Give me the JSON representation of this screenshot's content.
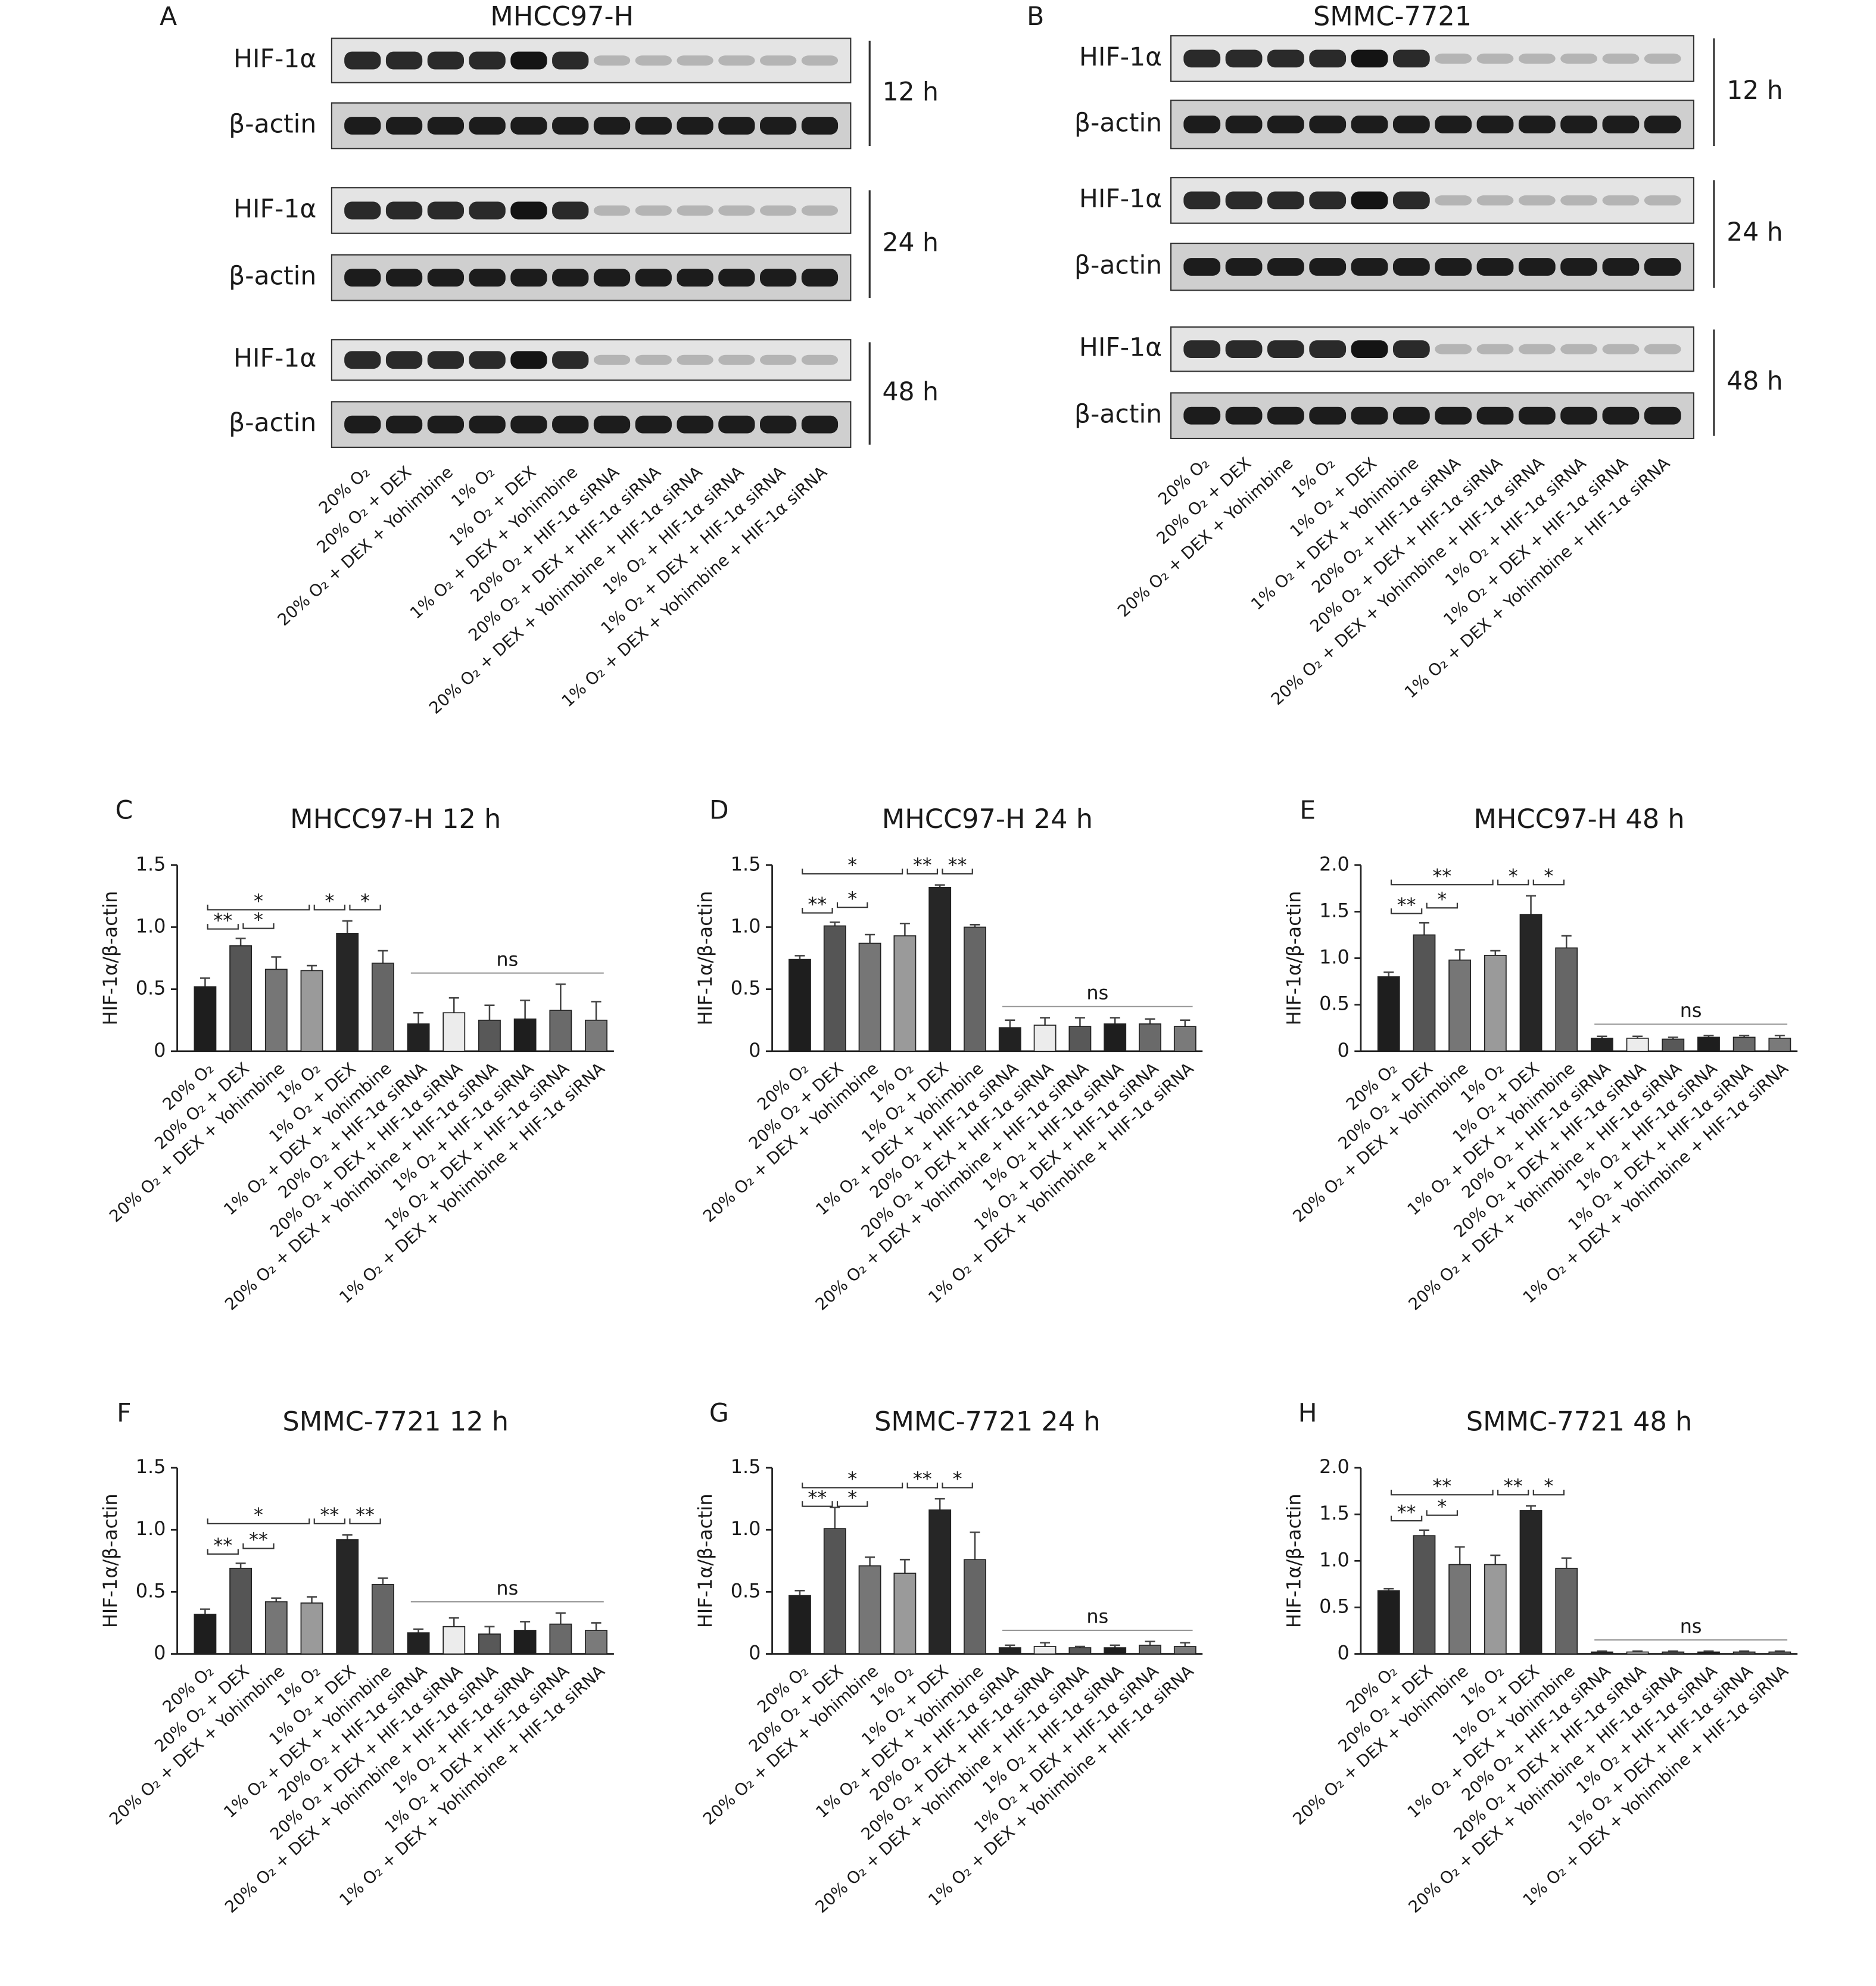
{
  "blots": [
    {
      "letter": "A",
      "title": "MHCC97-H",
      "groups": [
        {
          "time": "12 h",
          "rows": [
            "HIF-1α",
            "β-actin"
          ]
        },
        {
          "time": "24 h",
          "rows": [
            "HIF-1α",
            "β-actin"
          ]
        },
        {
          "time": "48 h",
          "rows": [
            "HIF-1α",
            "β-actin"
          ]
        }
      ],
      "lanes": [
        "20% O₂",
        "20% O₂ + DEX",
        "20% O₂ + DEX + Yohimbine",
        "1% O₂",
        "1% O₂ + DEX",
        "1% O₂ + DEX + Yohimbine",
        "20% O₂ + HIF-1α siRNA",
        "20% O₂ + DEX + HIF-1α siRNA",
        "20% O₂ + DEX + Yohimbine + HIF-1α siRNA",
        "1% O₂ + HIF-1α siRNA",
        "1% O₂ + DEX + HIF-1α siRNA",
        "1% O₂ + DEX + Yohimbine + HIF-1α siRNA"
      ]
    },
    {
      "letter": "B",
      "title": "SMMC-7721",
      "groups": [
        {
          "time": "12 h",
          "rows": [
            "HIF-1α",
            "β-actin"
          ]
        },
        {
          "time": "24 h",
          "rows": [
            "HIF-1α",
            "β-actin"
          ]
        },
        {
          "time": "48 h",
          "rows": [
            "HIF-1α",
            "β-actin"
          ]
        }
      ],
      "lanes": [
        "20% O₂",
        "20% O₂ + DEX",
        "20% O₂ + DEX + Yohimbine",
        "1% O₂",
        "1% O₂ + DEX",
        "1% O₂ + DEX + Yohimbine",
        "20% O₂ + HIF-1α siRNA",
        "20% O₂ + DEX + HIF-1α siRNA",
        "20% O₂ + DEX + Yohimbine + HIF-1α siRNA",
        "1% O₂ + HIF-1α siRNA",
        "1% O₂ + DEX + HIF-1α siRNA",
        "1% O₂ + DEX + Yohimbine + HIF-1α siRNA"
      ]
    }
  ],
  "chart_data": [
    {
      "type": "bar",
      "panel": "C",
      "title": "MHCC97-H 12 h",
      "y_label": "HIF-1α/β-actin",
      "categories": [
        "20% O₂",
        "20% O₂ + DEX",
        "20% O₂ + DEX + Yohimbine",
        "1% O₂",
        "1% O₂ + DEX",
        "1% O₂ + DEX + Yohimbine",
        "20% O₂ + HIF-1α siRNA",
        "20% O₂ + DEX + HIF-1α siRNA",
        "20% O₂ + DEX + Yohimbine + HIF-1α siRNA",
        "1% O₂ + HIF-1α siRNA",
        "1% O₂ + DEX + HIF-1α siRNA",
        "1% O₂ + DEX + Yohimbine + HIF-1α siRNA"
      ],
      "values": [
        0.52,
        0.85,
        0.66,
        0.65,
        0.95,
        0.71,
        0.22,
        0.31,
        0.25,
        0.26,
        0.33,
        0.25
      ],
      "errors": [
        0.07,
        0.06,
        0.1,
        0.04,
        0.1,
        0.1,
        0.09,
        0.12,
        0.12,
        0.15,
        0.21,
        0.15
      ],
      "colors": [
        "#1e1e1e",
        "#555555",
        "#767676",
        "#9a9a9a",
        "#262626",
        "#666666",
        "#222222",
        "#ececec",
        "#585858",
        "#1e1e1e",
        "#6a6a6a",
        "#7a7a7a"
      ],
      "ylim": [
        0,
        1.5
      ],
      "yticks": [
        0,
        0.5,
        {
          "value": 1,
          "label": "1.0"
        },
        1.5
      ],
      "annotations": [
        {
          "label": "**",
          "from": 0,
          "to": 1
        },
        {
          "label": "*",
          "from": 1,
          "to": 2
        },
        {
          "label": "*",
          "from": 0,
          "to": 3
        },
        {
          "label": "*",
          "from": 3,
          "to": 4
        },
        {
          "label": "*",
          "from": 4,
          "to": 5
        },
        {
          "label": "ns",
          "from": 6,
          "to": 11
        }
      ]
    },
    {
      "type": "bar",
      "panel": "D",
      "title": "MHCC97-H 24 h",
      "y_label": "HIF-1α/β-actin",
      "categories": [
        "20% O₂",
        "20% O₂ + DEX",
        "20% O₂ + DEX + Yohimbine",
        "1% O₂",
        "1% O₂ + DEX",
        "1% O₂ + DEX + Yohimbine",
        "20% O₂ + HIF-1α siRNA",
        "20% O₂ + DEX + HIF-1α siRNA",
        "20% O₂ + DEX + Yohimbine + HIF-1α siRNA",
        "1% O₂ + HIF-1α siRNA",
        "1% O₂ + DEX + HIF-1α siRNA",
        "1% O₂ + DEX + Yohimbine + HIF-1α siRNA"
      ],
      "values": [
        0.74,
        1.01,
        0.87,
        0.93,
        1.32,
        1.0,
        0.19,
        0.21,
        0.2,
        0.22,
        0.22,
        0.2
      ],
      "errors": [
        0.03,
        0.03,
        0.07,
        0.1,
        0.02,
        0.02,
        0.06,
        0.06,
        0.07,
        0.05,
        0.04,
        0.05
      ],
      "colors": [
        "#1e1e1e",
        "#555555",
        "#767676",
        "#9a9a9a",
        "#262626",
        "#666666",
        "#222222",
        "#ececec",
        "#585858",
        "#1e1e1e",
        "#6a6a6a",
        "#7a7a7a"
      ],
      "ylim": [
        0,
        1.5
      ],
      "yticks": [
        0,
        0.5,
        {
          "value": 1,
          "label": "1.0"
        },
        1.5
      ],
      "annotations": [
        {
          "label": "**",
          "from": 0,
          "to": 1
        },
        {
          "label": "*",
          "from": 1,
          "to": 2
        },
        {
          "label": "*",
          "from": 0,
          "to": 3
        },
        {
          "label": "**",
          "from": 3,
          "to": 4
        },
        {
          "label": "**",
          "from": 4,
          "to": 5
        },
        {
          "label": "ns",
          "from": 6,
          "to": 11
        }
      ]
    },
    {
      "type": "bar",
      "panel": "E",
      "title": "MHCC97-H 48 h",
      "y_label": "HIF-1α/β-actin",
      "categories": [
        "20% O₂",
        "20% O₂ + DEX",
        "20% O₂ + DEX + Yohimbine",
        "1% O₂",
        "1% O₂ + DEX",
        "1% O₂ + DEX + Yohimbine",
        "20% O₂ + HIF-1α siRNA",
        "20% O₂ + DEX + HIF-1α siRNA",
        "20% O₂ + DEX + Yohimbine + HIF-1α siRNA",
        "1% O₂ + HIF-1α siRNA",
        "1% O₂ + DEX + HIF-1α siRNA",
        "1% O₂ + DEX + Yohimbine + HIF-1α siRNA"
      ],
      "values": [
        0.8,
        1.25,
        0.98,
        1.03,
        1.47,
        1.11,
        0.14,
        0.14,
        0.13,
        0.15,
        0.15,
        0.14
      ],
      "errors": [
        0.05,
        0.13,
        0.11,
        0.05,
        0.2,
        0.13,
        0.02,
        0.02,
        0.02,
        0.02,
        0.02,
        0.03
      ],
      "colors": [
        "#1e1e1e",
        "#555555",
        "#767676",
        "#9a9a9a",
        "#262626",
        "#666666",
        "#222222",
        "#ececec",
        "#585858",
        "#1e1e1e",
        "#6a6a6a",
        "#7a7a7a"
      ],
      "ylim": [
        0,
        2
      ],
      "yticks": [
        0,
        0.5,
        {
          "value": 1,
          "label": "1.0"
        },
        1.5,
        {
          "value": 2,
          "label": "2.0"
        }
      ],
      "annotations": [
        {
          "label": "**",
          "from": 0,
          "to": 1
        },
        {
          "label": "*",
          "from": 1,
          "to": 2
        },
        {
          "label": "**",
          "from": 0,
          "to": 3
        },
        {
          "label": "*",
          "from": 3,
          "to": 4
        },
        {
          "label": "*",
          "from": 4,
          "to": 5
        },
        {
          "label": "ns",
          "from": 6,
          "to": 11
        }
      ]
    },
    {
      "type": "bar",
      "panel": "F",
      "title": "SMMC-7721 12 h",
      "y_label": "HIF-1α/β-actin",
      "categories": [
        "20% O₂",
        "20% O₂ + DEX",
        "20% O₂ + DEX + Yohimbine",
        "1% O₂",
        "1% O₂ + DEX",
        "1% O₂ + DEX + Yohimbine",
        "20% O₂ + HIF-1α siRNA",
        "20% O₂ + DEX + HIF-1α siRNA",
        "20% O₂ + DEX + Yohimbine + HIF-1α siRNA",
        "1% O₂ + HIF-1α siRNA",
        "1% O₂ + DEX + HIF-1α siRNA",
        "1% O₂ + DEX + Yohimbine + HIF-1α siRNA"
      ],
      "values": [
        0.32,
        0.69,
        0.42,
        0.41,
        0.92,
        0.56,
        0.17,
        0.22,
        0.16,
        0.19,
        0.24,
        0.19
      ],
      "errors": [
        0.04,
        0.04,
        0.03,
        0.05,
        0.04,
        0.05,
        0.03,
        0.07,
        0.06,
        0.07,
        0.09,
        0.06
      ],
      "colors": [
        "#1e1e1e",
        "#555555",
        "#767676",
        "#9a9a9a",
        "#262626",
        "#666666",
        "#222222",
        "#ececec",
        "#585858",
        "#1e1e1e",
        "#6a6a6a",
        "#7a7a7a"
      ],
      "ylim": [
        0,
        1.5
      ],
      "yticks": [
        0,
        0.5,
        {
          "value": 1,
          "label": "1.0"
        },
        1.5
      ],
      "annotations": [
        {
          "label": "**",
          "from": 0,
          "to": 1
        },
        {
          "label": "**",
          "from": 1,
          "to": 2
        },
        {
          "label": "*",
          "from": 0,
          "to": 3
        },
        {
          "label": "**",
          "from": 3,
          "to": 4
        },
        {
          "label": "**",
          "from": 4,
          "to": 5
        },
        {
          "label": "ns",
          "from": 6,
          "to": 11
        }
      ]
    },
    {
      "type": "bar",
      "panel": "G",
      "title": "SMMC-7721 24 h",
      "y_label": "HIF-1α/β-actin",
      "categories": [
        "20% O₂",
        "20% O₂ + DEX",
        "20% O₂ + DEX + Yohimbine",
        "1% O₂",
        "1% O₂ + DEX",
        "1% O₂ + DEX + Yohimbine",
        "20% O₂ + HIF-1α siRNA",
        "20% O₂ + DEX + HIF-1α siRNA",
        "20% O₂ + DEX + Yohimbine + HIF-1α siRNA",
        "1% O₂ + HIF-1α siRNA",
        "1% O₂ + DEX + HIF-1α siRNA",
        "1% O₂ + DEX + Yohimbine + HIF-1α siRNA"
      ],
      "values": [
        0.47,
        1.01,
        0.71,
        0.65,
        1.16,
        0.76,
        0.05,
        0.06,
        0.05,
        0.05,
        0.07,
        0.06
      ],
      "errors": [
        0.04,
        0.17,
        0.07,
        0.11,
        0.09,
        0.22,
        0.02,
        0.03,
        0.01,
        0.02,
        0.03,
        0.03
      ],
      "colors": [
        "#1e1e1e",
        "#555555",
        "#767676",
        "#9a9a9a",
        "#262626",
        "#666666",
        "#222222",
        "#ececec",
        "#585858",
        "#1e1e1e",
        "#6a6a6a",
        "#7a7a7a"
      ],
      "ylim": [
        0,
        1.5
      ],
      "yticks": [
        0,
        0.5,
        {
          "value": 1,
          "label": "1.0"
        },
        1.5
      ],
      "annotations": [
        {
          "label": "**",
          "from": 0,
          "to": 1
        },
        {
          "label": "*",
          "from": 1,
          "to": 2
        },
        {
          "label": "*",
          "from": 0,
          "to": 3
        },
        {
          "label": "**",
          "from": 3,
          "to": 4
        },
        {
          "label": "*",
          "from": 4,
          "to": 5
        },
        {
          "label": "ns",
          "from": 6,
          "to": 11
        }
      ]
    },
    {
      "type": "bar",
      "panel": "H",
      "title": "SMMC-7721 48 h",
      "y_label": "HIF-1α/β-actin",
      "categories": [
        "20% O₂",
        "20% O₂ + DEX",
        "20% O₂ + DEX + Yohimbine",
        "1% O₂",
        "1% O₂ + DEX",
        "1% O₂ + DEX + Yohimbine",
        "20% O₂ + HIF-1α siRNA",
        "20% O₂ + DEX + HIF-1α siRNA",
        "20% O₂ + DEX + Yohimbine + HIF-1α siRNA",
        "1% O₂ + HIF-1α siRNA",
        "1% O₂ + DEX + HIF-1α siRNA",
        "1% O₂ + DEX + Yohimbine + HIF-1α siRNA"
      ],
      "values": [
        0.68,
        1.27,
        0.96,
        0.96,
        1.54,
        0.92,
        0.02,
        0.02,
        0.02,
        0.02,
        0.02,
        0.02
      ],
      "errors": [
        0.02,
        0.06,
        0.19,
        0.1,
        0.05,
        0.11,
        0.01,
        0.01,
        0.01,
        0.01,
        0.01,
        0.01
      ],
      "colors": [
        "#1e1e1e",
        "#555555",
        "#767676",
        "#9a9a9a",
        "#262626",
        "#666666",
        "#222222",
        "#ececec",
        "#585858",
        "#1e1e1e",
        "#6a6a6a",
        "#7a7a7a"
      ],
      "ylim": [
        0,
        2
      ],
      "yticks": [
        0,
        0.5,
        {
          "value": 1,
          "label": "1.0"
        },
        1.5,
        {
          "value": 2,
          "label": "2.0"
        }
      ],
      "annotations": [
        {
          "label": "**",
          "from": 0,
          "to": 1
        },
        {
          "label": "*",
          "from": 1,
          "to": 2
        },
        {
          "label": "**",
          "from": 0,
          "to": 3
        },
        {
          "label": "**",
          "from": 3,
          "to": 4
        },
        {
          "label": "*",
          "from": 4,
          "to": 5
        },
        {
          "label": "ns",
          "from": 6,
          "to": 11
        }
      ]
    }
  ]
}
